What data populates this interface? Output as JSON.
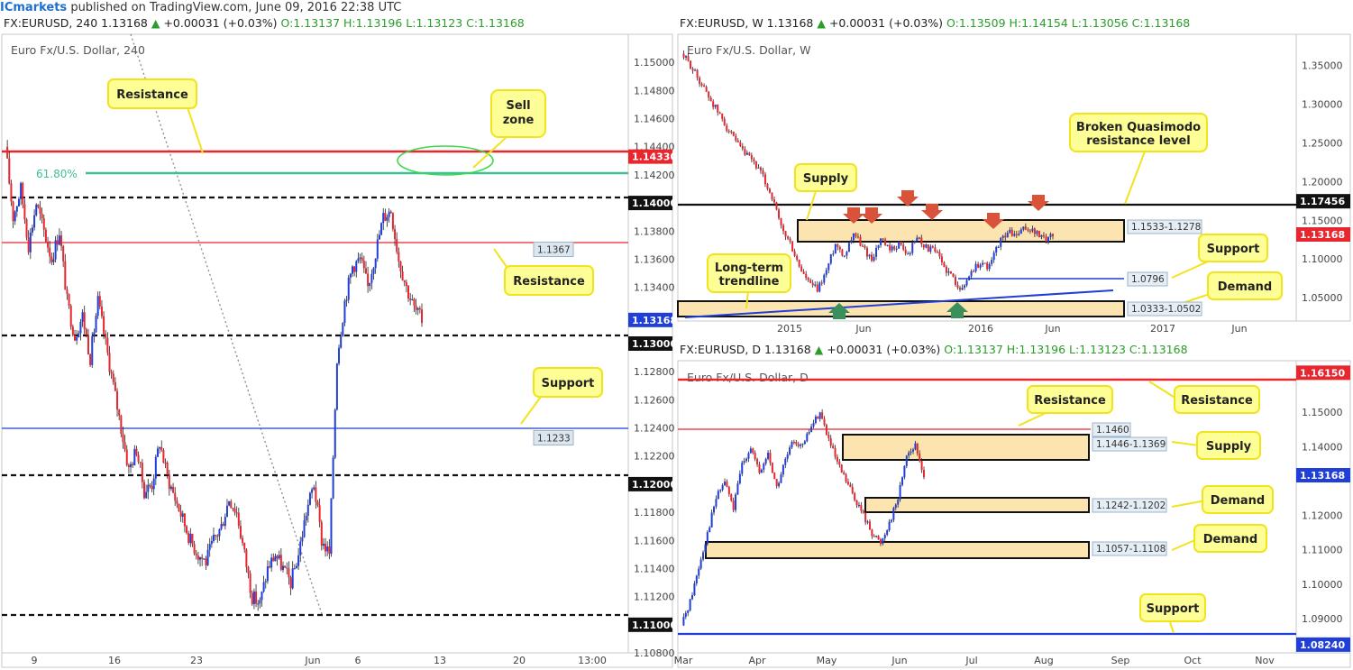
{
  "header": {
    "brand": "ICmarkets",
    "published": " published on TradingView.com, June 09, 2016 22:38 UTC"
  },
  "panel_h4": {
    "symbol_line": "FX:EURUSD, 240  1.13168",
    "change": "+0.00031 (+0.03%)",
    "ohlc": "O:1.13137  H:1.13196  L:1.13123  C:1.13168",
    "title": "Euro Fx/U.S. Dollar, 240",
    "fib_label": "61.80%",
    "labels": {
      "resistance_top": "Resistance",
      "sell_zone": "Sell zone",
      "resistance_mid": "Resistance",
      "support": "Support"
    },
    "price_tags": [
      {
        "text": "1.14330",
        "color": "#e8262d"
      },
      {
        "text": "1.14000",
        "color": "#111111"
      },
      {
        "text": "1.1367",
        "color": "#dce6ef"
      },
      {
        "text": "1.13168",
        "color": "#1f3fd8"
      },
      {
        "text": "1.13000",
        "color": "#111111"
      },
      {
        "text": "1.1233",
        "color": "#dce6ef"
      },
      {
        "text": "1.12000",
        "color": "#111111"
      },
      {
        "text": "1.11000",
        "color": "#111111"
      }
    ],
    "y_ticks": [
      "1.15000",
      "1.14800",
      "1.14600",
      "1.14400",
      "1.14200",
      "1.13800",
      "1.13600",
      "1.13400",
      "1.12800",
      "1.12600",
      "1.12400",
      "1.12200",
      "1.11800",
      "1.11600",
      "1.11400",
      "1.11200",
      "1.10800"
    ],
    "x_ticks": [
      "9",
      "16",
      "23",
      "Jun",
      "6",
      "13",
      "20",
      "13:00"
    ]
  },
  "panel_w": {
    "symbol_line": "FX:EURUSD, W  1.13168",
    "change": "+0.00031 (+0.03%)",
    "ohlc": "O:1.13509  H:1.14154  L:1.13056  C:1.13168",
    "title": "Euro Fx/U.S. Dollar, W",
    "labels": {
      "supply": "Supply",
      "broken_qm": "Broken Quasimodo resistance level",
      "support": "Support",
      "trendline": "Long-term trendline",
      "demand": "Demand"
    },
    "zone_tags": [
      "1.1533-1.1278",
      "1.0796",
      "1.0333-1.0502"
    ],
    "price_tags": [
      {
        "text": "1.17456",
        "color": "#111111"
      },
      {
        "text": "1.13168",
        "color": "#e8262d"
      }
    ],
    "y_ticks": [
      "1.35000",
      "1.30000",
      "1.25000",
      "1.20000",
      "1.15000",
      "1.10000",
      "1.05000"
    ],
    "x_ticks": [
      "2015",
      "Jun",
      "2016",
      "Jun",
      "2017",
      "Jun"
    ]
  },
  "panel_d": {
    "symbol_line": "FX:EURUSD, D  1.13168",
    "change": "+0.00031 (+0.03%)",
    "ohlc": "O:1.13137  H:1.13196  L:1.13123  C:1.13168",
    "title": "Euro Fx/U.S. Dollar, D",
    "labels": {
      "resistance_a": "Resistance",
      "resistance_b": "Resistance",
      "supply": "Supply",
      "demand_a": "Demand",
      "demand_b": "Demand",
      "support": "Support"
    },
    "zone_tags": [
      "1.1460",
      "1.1446-1.1369",
      "1.1242-1.1202",
      "1.1057-1.1108"
    ],
    "price_tags": [
      {
        "text": "1.16150",
        "color": "#e8262d"
      },
      {
        "text": "1.13168",
        "color": "#1f3fd8"
      },
      {
        "text": "1.08240",
        "color": "#1f3fd8"
      }
    ],
    "y_ticks": [
      "1.15000",
      "1.14000",
      "1.12000",
      "1.11000",
      "1.10000",
      "1.09000"
    ],
    "x_ticks": [
      "Mar",
      "Apr",
      "May",
      "Jun",
      "Jul",
      "Aug",
      "Sep",
      "Oct",
      "Nov"
    ]
  },
  "chart_data": [
    {
      "type": "candlestick",
      "title": "Euro Fx/U.S. Dollar, 240",
      "ylim": [
        1.108,
        1.152
      ],
      "levels": [
        1.1433,
        1.14,
        1.1367,
        1.13,
        1.1233,
        1.12,
        1.11
      ],
      "path": [
        1.144,
        1.139,
        1.141,
        1.137,
        1.14,
        1.138,
        1.136,
        1.138,
        1.133,
        1.1305,
        1.132,
        1.129,
        1.133,
        1.13,
        1.127,
        1.124,
        1.121,
        1.1225,
        1.1195,
        1.12,
        1.123,
        1.1205,
        1.119,
        1.1175,
        1.116,
        1.115,
        1.1145,
        1.116,
        1.117,
        1.119,
        1.118,
        1.115,
        1.112,
        1.1115,
        1.114,
        1.115,
        1.114,
        1.113,
        1.115,
        1.118,
        1.12,
        1.116,
        1.115,
        1.129,
        1.133,
        1.1355,
        1.136,
        1.134,
        1.1365,
        1.139,
        1.1395,
        1.136,
        1.134,
        1.1325,
        1.1317
      ]
    },
    {
      "type": "candlestick",
      "title": "Euro Fx/U.S. Dollar, W",
      "ylim": [
        1.02,
        1.39
      ],
      "levels": [
        1.17456,
        1.0796
      ],
      "zones": [
        [
          1.1278,
          1.1533
        ],
        [
          1.0333,
          1.0502
        ]
      ],
      "path": [
        1.365,
        1.35,
        1.33,
        1.31,
        1.29,
        1.27,
        1.25,
        1.235,
        1.225,
        1.205,
        1.18,
        1.14,
        1.12,
        1.09,
        1.07,
        1.06,
        1.085,
        1.12,
        1.105,
        1.135,
        1.115,
        1.1,
        1.125,
        1.11,
        1.12,
        1.105,
        1.13,
        1.115,
        1.11,
        1.09,
        1.075,
        1.06,
        1.085,
        1.095,
        1.09,
        1.12,
        1.135,
        1.13,
        1.14,
        1.135,
        1.125,
        1.1317
      ]
    },
    {
      "type": "candlestick",
      "title": "Euro Fx/U.S. Dollar, D",
      "ylim": [
        1.08,
        1.165
      ],
      "levels": [
        1.1615,
        1.146,
        1.0824
      ],
      "zones": [
        [
          1.1369,
          1.1446
        ],
        [
          1.1202,
          1.1242
        ],
        [
          1.1057,
          1.1108
        ]
      ],
      "path": [
        1.088,
        1.095,
        1.105,
        1.115,
        1.125,
        1.13,
        1.122,
        1.135,
        1.14,
        1.132,
        1.138,
        1.128,
        1.136,
        1.142,
        1.14,
        1.146,
        1.15,
        1.142,
        1.135,
        1.13,
        1.125,
        1.12,
        1.115,
        1.112,
        1.118,
        1.125,
        1.138,
        1.14,
        1.1317
      ]
    }
  ]
}
